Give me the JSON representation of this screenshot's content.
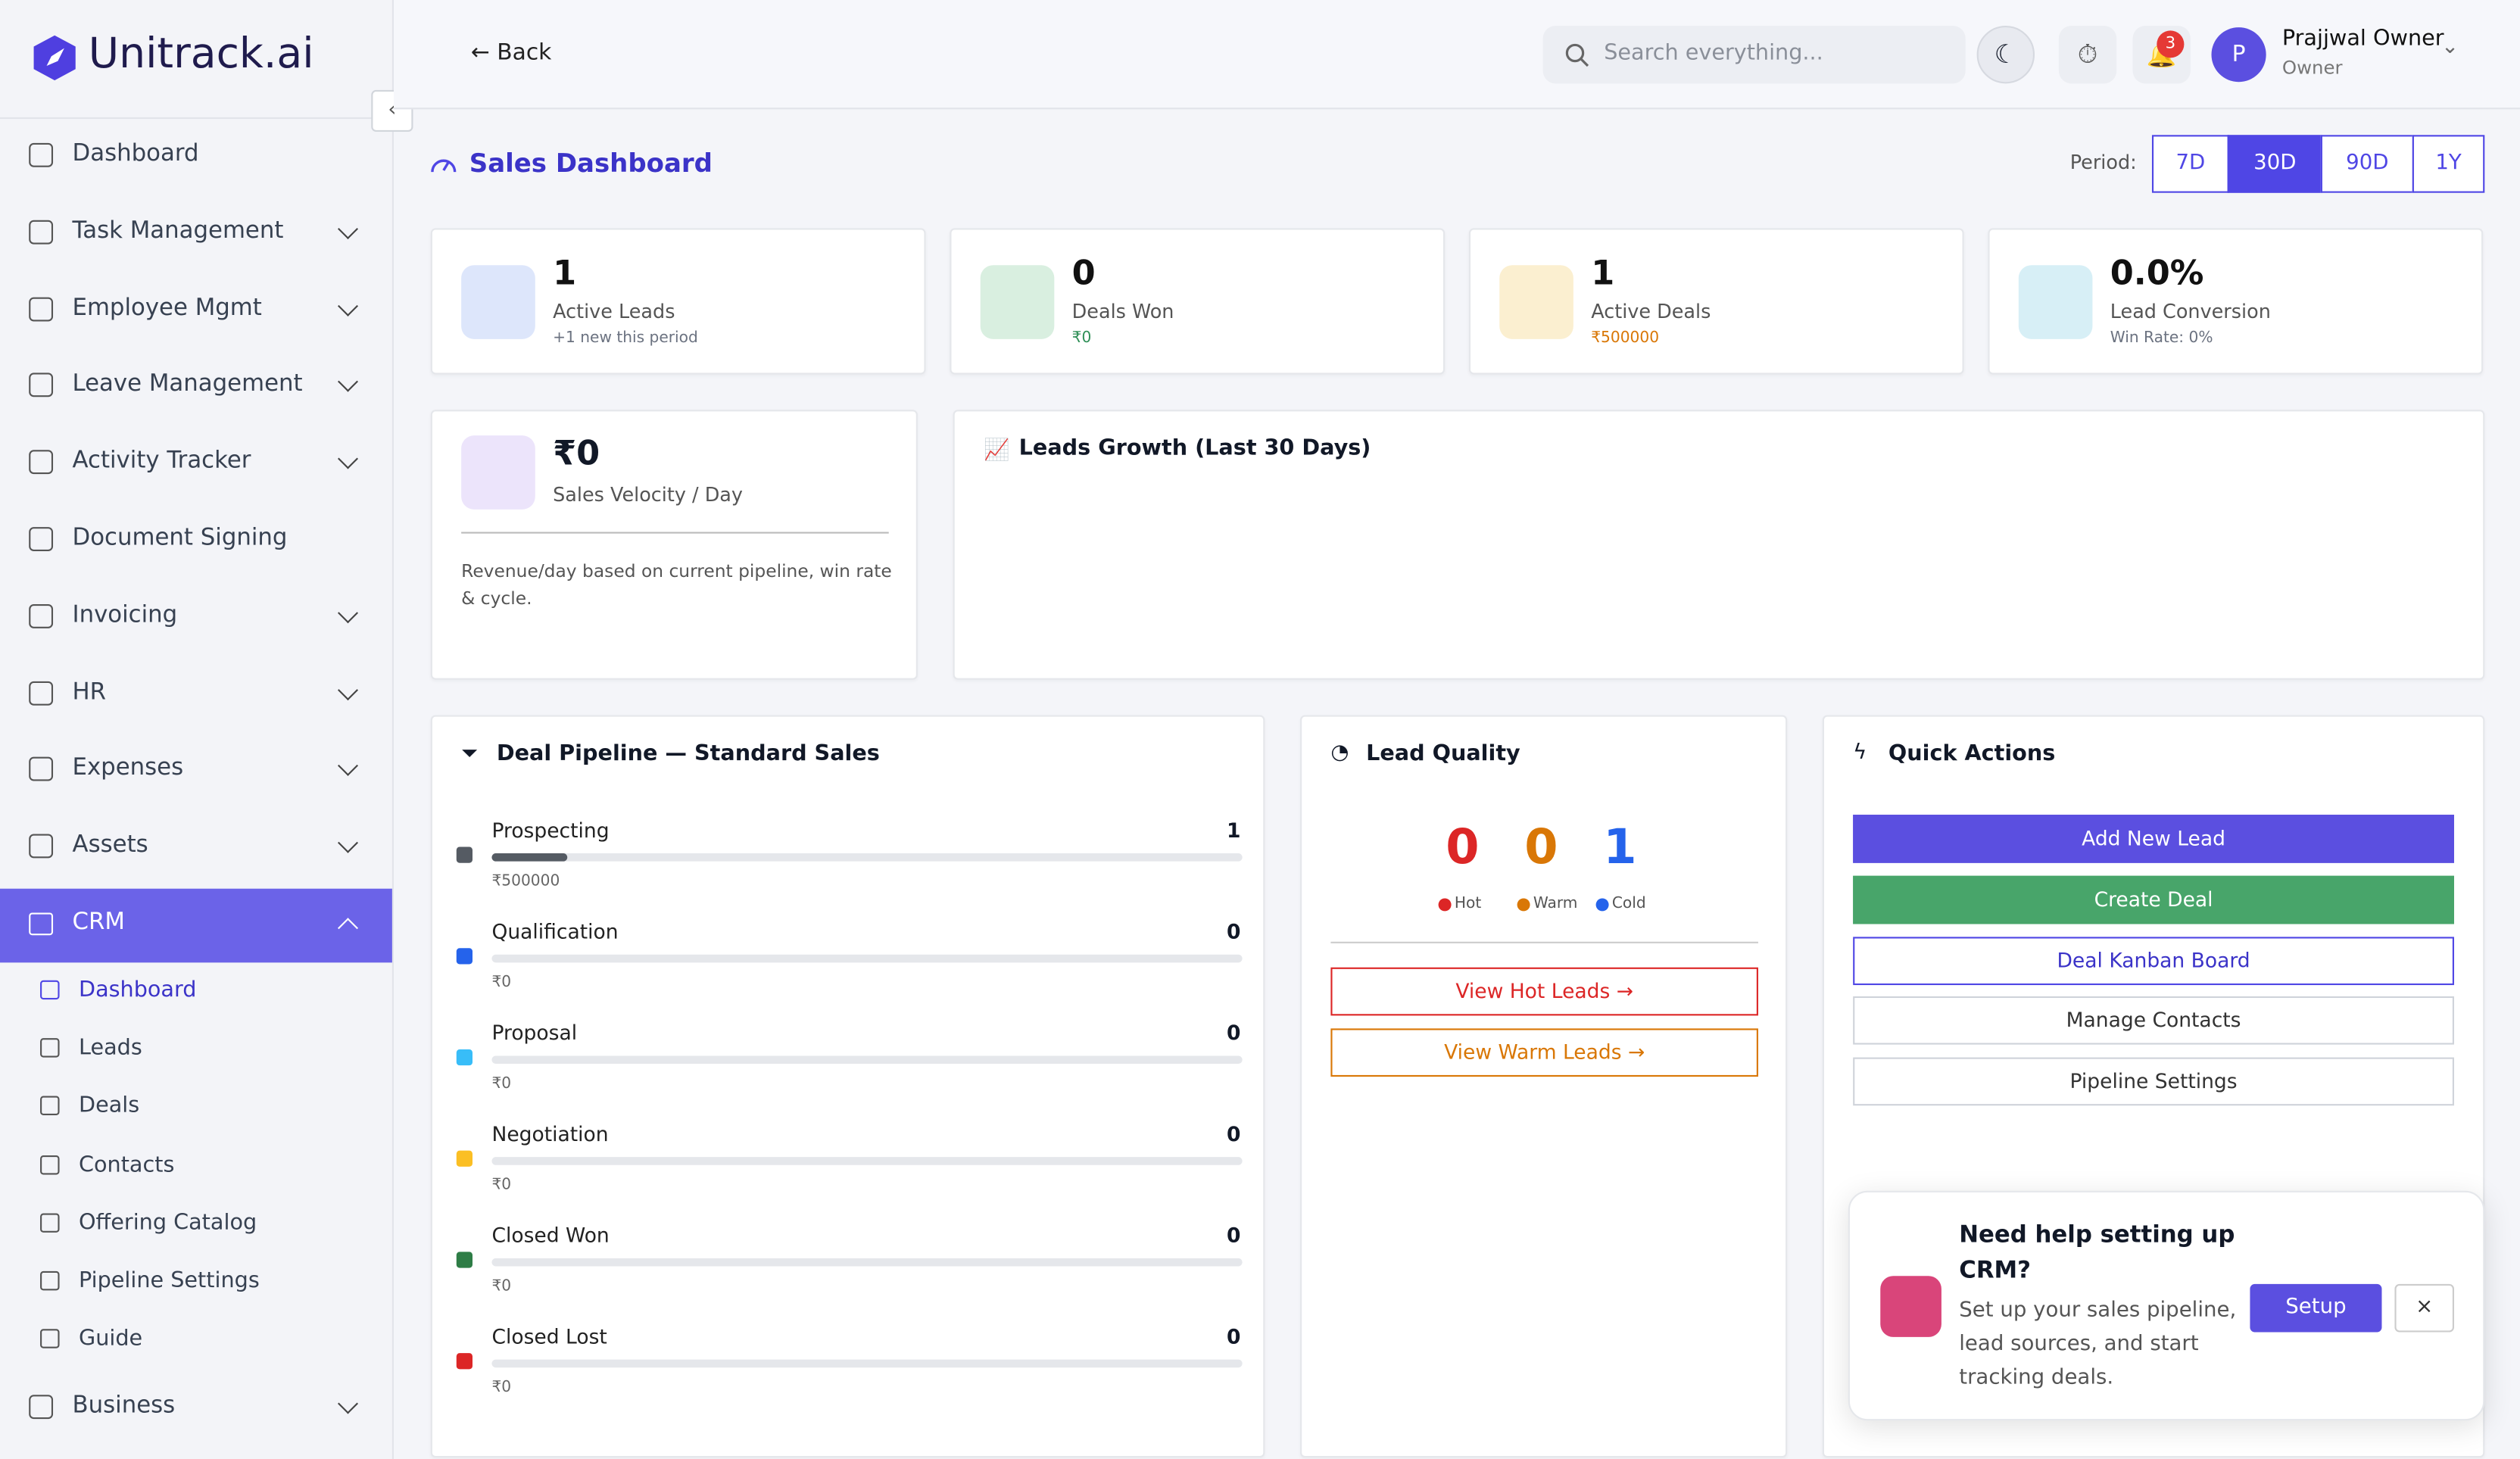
{
  "brand": "Unitrack.ai",
  "sidebar": {
    "items": [
      {
        "label": "Dashboard",
        "expandable": false
      },
      {
        "label": "Task Management",
        "expandable": true
      },
      {
        "label": "Employee Mgmt",
        "expandable": true
      },
      {
        "label": "Leave Management",
        "expandable": true
      },
      {
        "label": "Activity Tracker",
        "expandable": true
      },
      {
        "label": "Document Signing",
        "expandable": false
      },
      {
        "label": "Invoicing",
        "expandable": true
      },
      {
        "label": "HR",
        "expandable": true
      },
      {
        "label": "Expenses",
        "expandable": true
      },
      {
        "label": "Assets",
        "expandable": true
      }
    ],
    "active": "CRM",
    "subitems": [
      "Dashboard",
      "Leads",
      "Deals",
      "Contacts",
      "Offering Catalog",
      "Pipeline Settings",
      "Guide"
    ],
    "active_subitem": "Dashboard",
    "last": "Business"
  },
  "topbar": {
    "back": "Back",
    "search_placeholder": "Search everything...",
    "notifications": 3,
    "user": {
      "initial": "P",
      "name": "Prajjwal Owner",
      "role": "Owner"
    }
  },
  "page": {
    "title": "Sales Dashboard",
    "period_label": "Period:",
    "periods": [
      "7D",
      "30D",
      "90D",
      "1Y"
    ],
    "active_period": "30D"
  },
  "stats": [
    {
      "value": 1,
      "label": "Active Leads",
      "sub": "+1 new this period",
      "color": "#dde6fb",
      "accent": "#6b7280"
    },
    {
      "value": 0,
      "label": "Deals Won",
      "sub": "₹0",
      "color": "#d9efe0",
      "accent": "#2f8f57"
    },
    {
      "value": 1,
      "label": "Active Deals",
      "sub": "₹500000",
      "color": "#fbefd0",
      "accent": "#d97706"
    },
    {
      "value": "0.0%",
      "label": "Lead Conversion",
      "sub": "Win Rate: 0%",
      "color": "#d7eff6",
      "accent": "#6b7280"
    }
  ],
  "velocity": {
    "value": "₹0",
    "label": "Sales Velocity / Day",
    "note": "Revenue/day based on current pipeline, win rate & cycle."
  },
  "growth": {
    "title": "Leads Growth (Last 30 Days)"
  },
  "pipeline": {
    "title": "Deal Pipeline — Standard Sales",
    "stages": [
      {
        "name": "Prospecting",
        "count": 1,
        "amount": "₹500000",
        "color": "#555b63",
        "bar_percent": 10
      },
      {
        "name": "Qualification",
        "count": 0,
        "amount": "₹0",
        "color": "#2563eb",
        "bar_percent": 0
      },
      {
        "name": "Proposal",
        "count": 0,
        "amount": "₹0",
        "color": "#38bdf8",
        "bar_percent": 0
      },
      {
        "name": "Negotiation",
        "count": 0,
        "amount": "₹0",
        "color": "#fbbf24",
        "bar_percent": 0
      },
      {
        "name": "Closed Won",
        "count": 0,
        "amount": "₹0",
        "color": "#2e7d46",
        "bar_percent": 0
      },
      {
        "name": "Closed Lost",
        "count": 0,
        "amount": "₹0",
        "color": "#dc2626",
        "bar_percent": 0
      }
    ]
  },
  "lead_quality": {
    "title": "Lead Quality",
    "counts": [
      {
        "value": 0,
        "label": "Hot",
        "color": "#dc2626"
      },
      {
        "value": 0,
        "label": "Warm",
        "color": "#d97706"
      },
      {
        "value": 1,
        "label": "Cold",
        "color": "#2563eb"
      }
    ],
    "buttons": [
      {
        "label": "View Hot Leads →",
        "color": "#dc2626"
      },
      {
        "label": "View Warm Leads →",
        "color": "#d97706"
      }
    ]
  },
  "quick_actions": {
    "title": "Quick Actions",
    "actions": [
      {
        "label": "Add New Lead",
        "style": "primary"
      },
      {
        "label": "Create Deal",
        "style": "success"
      },
      {
        "label": "Deal Kanban Board",
        "style": "outline"
      },
      {
        "label": "Manage Contacts",
        "style": "plain"
      },
      {
        "label": "Pipeline Settings",
        "style": "plain"
      }
    ]
  },
  "help": {
    "title": "Need help setting up CRM?",
    "text": "Set up your sales pipeline, lead sources, and start tracking deals.",
    "button": "Setup",
    "close": "×"
  }
}
